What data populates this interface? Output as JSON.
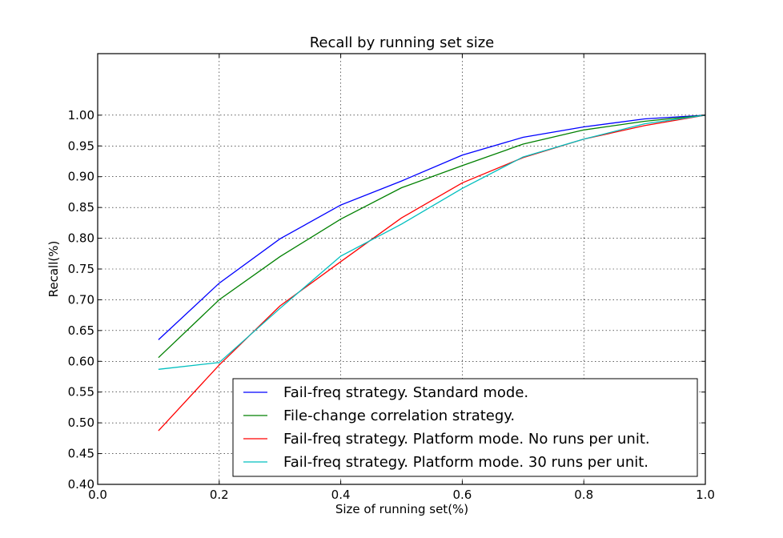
{
  "chart_data": {
    "type": "line",
    "title": "Recall by running set size",
    "xlabel": "Size of running set(%)",
    "ylabel": "Recall(%)",
    "xlim": [
      0.0,
      1.0
    ],
    "ylim": [
      0.4,
      1.1
    ],
    "xticks": [
      "0.0",
      "0.2",
      "0.4",
      "0.6",
      "0.8",
      "1.0"
    ],
    "yticks": [
      "0.40",
      "0.45",
      "0.50",
      "0.55",
      "0.60",
      "0.65",
      "0.70",
      "0.75",
      "0.80",
      "0.85",
      "0.90",
      "0.95",
      "1.00"
    ],
    "grid": true,
    "legend_position": "lower-right",
    "x": [
      0.1,
      0.2,
      0.3,
      0.4,
      0.5,
      0.6,
      0.7,
      0.8,
      0.9,
      1.0
    ],
    "series": [
      {
        "name": "Fail-freq strategy. Standard mode.",
        "color": "#0000ff",
        "values": [
          0.635,
          0.727,
          0.799,
          0.854,
          0.893,
          0.935,
          0.964,
          0.981,
          0.994,
          1.0
        ]
      },
      {
        "name": "File-change correlation strategy.",
        "color": "#008000",
        "values": [
          0.606,
          0.7,
          0.77,
          0.831,
          0.882,
          0.918,
          0.953,
          0.976,
          0.99,
          1.0
        ]
      },
      {
        "name": "Fail-freq strategy. Platform mode. No runs per unit.",
        "color": "#ff0000",
        "values": [
          0.487,
          0.594,
          0.69,
          0.762,
          0.833,
          0.89,
          0.931,
          0.961,
          0.983,
          1.0
        ]
      },
      {
        "name": "Fail-freq strategy. Platform mode. 30 runs per unit.",
        "color": "#00bfbf",
        "values": [
          0.587,
          0.598,
          0.686,
          0.771,
          0.823,
          0.881,
          0.932,
          0.961,
          0.986,
          1.0
        ]
      }
    ]
  }
}
